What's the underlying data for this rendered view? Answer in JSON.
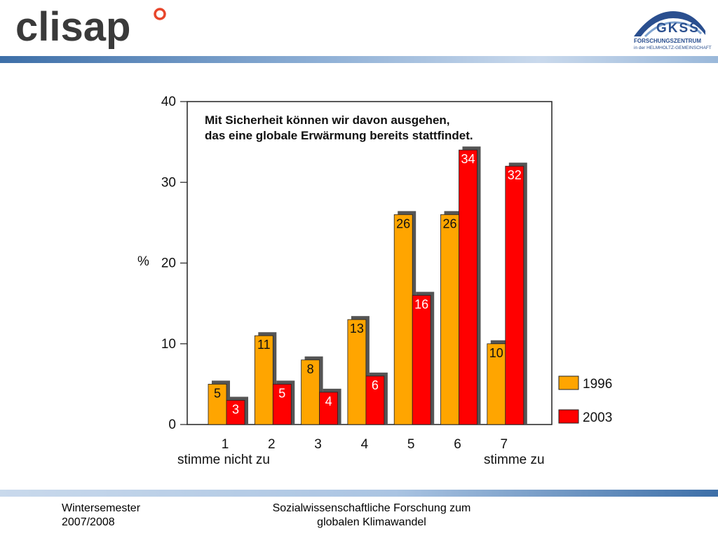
{
  "header": {
    "logo_left": "clisap",
    "logo_right": {
      "name": "GKSS",
      "line1": "FORSCHUNGSZENTRUM",
      "line2": "in der HELMHOLTZ-GEMEINSCHAFT"
    }
  },
  "footer": {
    "left_line1": "Wintersemester",
    "left_line2": "2007/2008",
    "center_line1": "Sozialwissenschaftliche Forschung zum",
    "center_line2": "globalen Klimawandel"
  },
  "colors": {
    "series_1996": "#ffa500",
    "series_2003": "#ff0000",
    "band": "#3d6fa8",
    "gkss_blue": "#2a4f8f"
  },
  "chart_data": {
    "type": "bar",
    "title_line1": "Mit Sicherheit können wir davon ausgehen,",
    "title_line2": "das eine globale Erwärmung bereits stattfindet.",
    "ylabel": "%",
    "ylim": [
      0,
      40
    ],
    "yticks": [
      "0",
      "10",
      "20",
      "30",
      "40"
    ],
    "categories": [
      "1",
      "2",
      "3",
      "4",
      "5",
      "6",
      "7"
    ],
    "x_sublabel_left": "stimme nicht zu",
    "x_sublabel_right": "stimme zu",
    "legend_position": "right",
    "series": [
      {
        "name": "1996",
        "values": [
          5,
          11,
          8,
          13,
          26,
          26,
          10
        ]
      },
      {
        "name": "2003",
        "values": [
          3,
          5,
          4,
          6,
          16,
          34,
          32
        ]
      }
    ]
  }
}
